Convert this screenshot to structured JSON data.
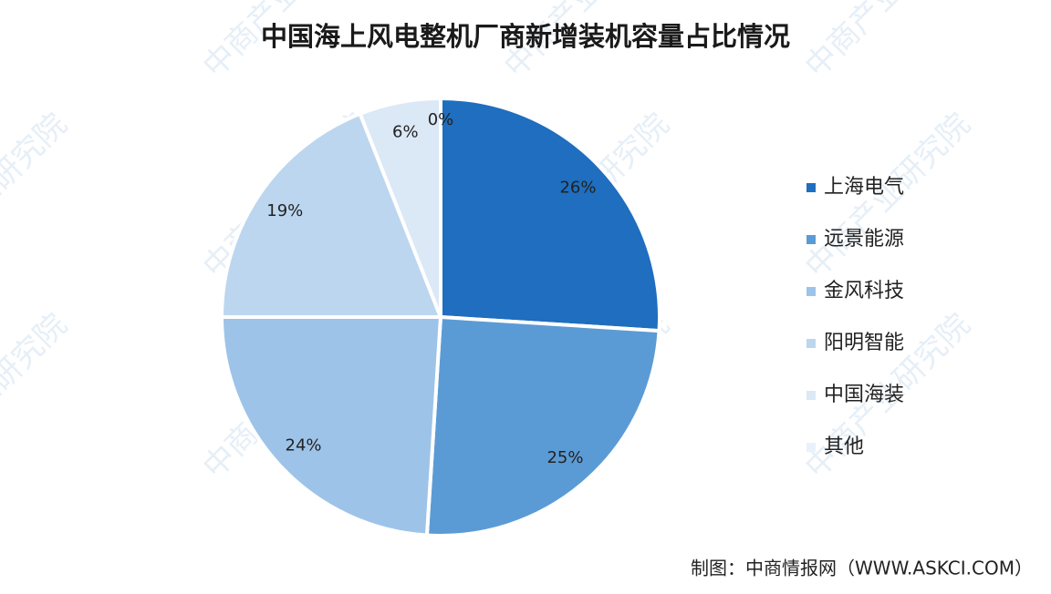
{
  "chart_data": {
    "type": "pie",
    "title": "中国海上风电整机厂商新增装机容量占比情况",
    "categories": [
      "上海电气",
      "远景能源",
      "金风科技",
      "阳明智能",
      "中国海装",
      "其他"
    ],
    "values": [
      26,
      25,
      24,
      19,
      6,
      0
    ],
    "value_labels": [
      "26%",
      "25%",
      "24%",
      "19%",
      "6%",
      "0%"
    ],
    "colors": [
      "#1f6ebf",
      "#5b9bd5",
      "#9ec3e8",
      "#bcd6ef",
      "#dbe8f6",
      "#e9f1fa"
    ],
    "legend": "right",
    "source": "制图：中商情报网（WWW.ASKCI.COM）",
    "watermark": "中商产业研究院"
  }
}
